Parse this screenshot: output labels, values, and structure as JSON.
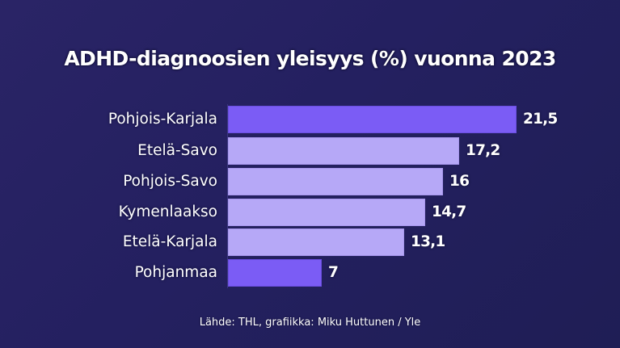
{
  "title": "ADHD-diagnoosien yleisyys (%) vuonna 2023",
  "source": "Lähde: THL, grafiikka: Miku Huttunen / Yle",
  "colors": {
    "background": "#242060",
    "bar_highlight": "#7b5cf5",
    "bar_default": "#b6a8f7",
    "text": "#ffffff"
  },
  "chart_data": {
    "type": "bar",
    "orientation": "horizontal",
    "title": "ADHD-diagnoosien yleisyys (%) vuonna 2023",
    "xlabel": "",
    "ylabel": "",
    "categories": [
      "Pohjois-Karjala",
      "Etelä-Savo",
      "Pohjois-Savo",
      "Kymenlaakso",
      "Etelä-Karjala",
      "Pohjanmaa"
    ],
    "values": [
      21.5,
      17.2,
      16,
      14.7,
      13.1,
      7
    ],
    "value_labels": [
      "21,5",
      "17,2",
      "16",
      "14,7",
      "13,1",
      "7"
    ],
    "highlighted": [
      true,
      false,
      false,
      false,
      false,
      true
    ],
    "grid": false,
    "legend": null,
    "annotations": [
      "Lähde: THL, grafiikka: Miku Huttunen / Yle"
    ]
  }
}
